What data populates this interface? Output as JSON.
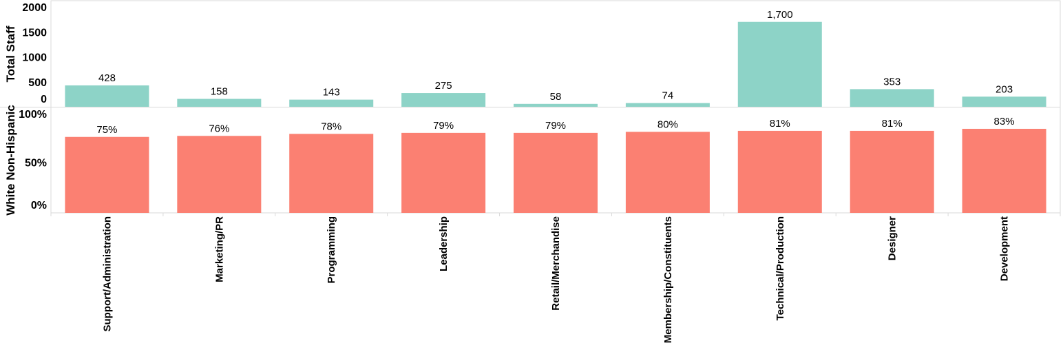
{
  "chart_data": [
    {
      "type": "bar",
      "ylabel": "Total Staff",
      "ylim": [
        0,
        2000
      ],
      "yticks": [
        "0",
        "500",
        "1000",
        "1500",
        "2000"
      ],
      "ytick_values": [
        0,
        500,
        1000,
        1500,
        2000
      ],
      "categories": [
        "Support/Administration",
        "Marketing/PR",
        "Programming",
        "Leadership",
        "Retail/Merchandise",
        "Membership/Constituents",
        "Technical/Production",
        "Designer",
        "Development"
      ],
      "values": [
        428,
        158,
        143,
        275,
        58,
        74,
        1700,
        353,
        203
      ],
      "labels": [
        "428",
        "158",
        "143",
        "275",
        "58",
        "74",
        "1,700",
        "353",
        "203"
      ],
      "color": "#8dd3c7",
      "grid": false
    },
    {
      "type": "bar",
      "ylabel": "White Non-Hispanic",
      "ylim": [
        0,
        100
      ],
      "yticks": [
        "0%",
        "50%",
        "100%"
      ],
      "ytick_values": [
        0,
        50,
        100
      ],
      "categories": [
        "Support/Administration",
        "Marketing/PR",
        "Programming",
        "Leadership",
        "Retail/Merchandise",
        "Membership/Constituents",
        "Technical/Production",
        "Designer",
        "Development"
      ],
      "values": [
        75,
        76,
        78,
        79,
        79,
        80,
        81,
        81,
        83
      ],
      "labels": [
        "75%",
        "76%",
        "78%",
        "79%",
        "79%",
        "80%",
        "81%",
        "81%",
        "83%"
      ],
      "color": "#fb8072",
      "grid": false
    }
  ]
}
